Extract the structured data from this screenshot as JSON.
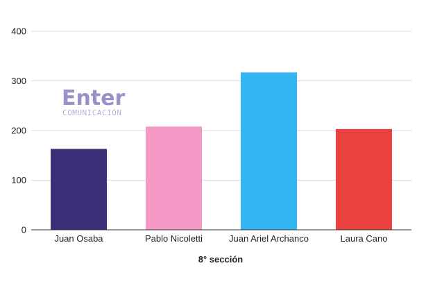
{
  "logo": {
    "word": "Enter",
    "tagline": "COMUNICACIÓN",
    "color_main": "#9a8fc6",
    "color_sub": "#b6b0d6"
  },
  "chart_data": {
    "type": "bar",
    "title": "",
    "xlabel": "8° sección",
    "ylabel": "",
    "categories": [
      "Juan Osaba",
      "Pablo Nicoletti",
      "Juan Ariel Archanco",
      "Laura Cano"
    ],
    "values": [
      163,
      208,
      317,
      203
    ],
    "colors": [
      "#3b2f78",
      "#f59ac7",
      "#33b5f2",
      "#e8413f"
    ],
    "ylim": [
      0,
      400
    ],
    "yticks": [
      "0",
      "100",
      "200",
      "300",
      "400"
    ],
    "grid": true,
    "legend": "none"
  }
}
